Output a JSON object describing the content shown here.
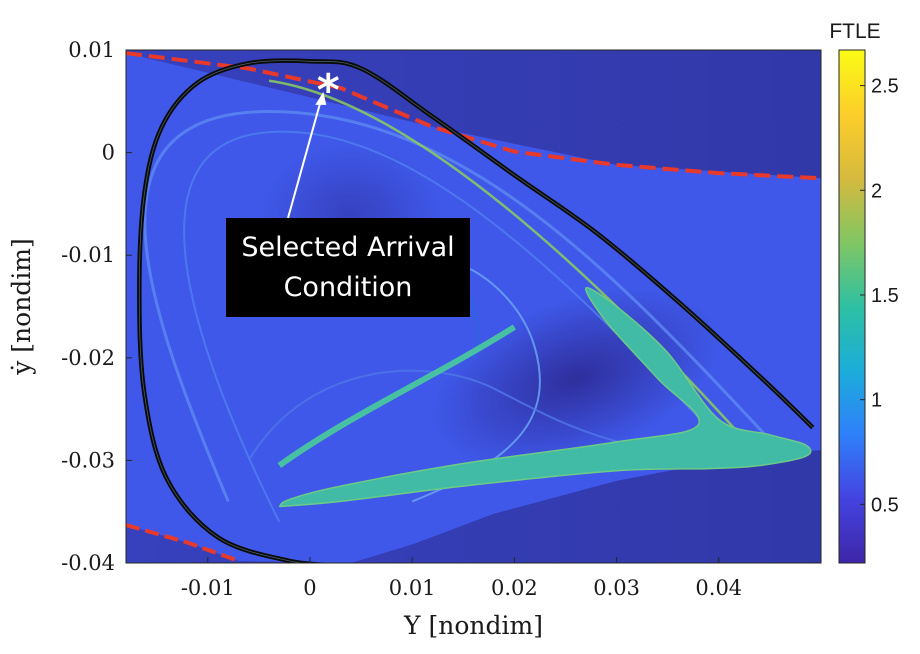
{
  "chart_data": {
    "type": "heatmap",
    "xlabel": "Y [nondim]",
    "ylabel": "ẏ [nondim]",
    "xlim": [
      -0.018,
      0.05
    ],
    "ylim": [
      -0.04,
      0.01
    ],
    "xticks": [
      {
        "value": -0.01,
        "label": "-0.01"
      },
      {
        "value": 0,
        "label": "0"
      },
      {
        "value": 0.01,
        "label": "0.01"
      },
      {
        "value": 0.02,
        "label": "0.02"
      },
      {
        "value": 0.03,
        "label": "0.03"
      },
      {
        "value": 0.04,
        "label": "0.04"
      }
    ],
    "yticks": [
      {
        "value": 0.01,
        "label": "0.01"
      },
      {
        "value": 0,
        "label": "0"
      },
      {
        "value": -0.01,
        "label": "-0.01"
      },
      {
        "value": -0.02,
        "label": "-0.02"
      },
      {
        "value": -0.03,
        "label": "-0.03"
      },
      {
        "value": -0.04,
        "label": "-0.04"
      }
    ],
    "grid": false,
    "colorbar": {
      "title": "FTLE",
      "range": [
        0.22,
        2.67
      ],
      "ticks": [
        {
          "value": 0.5,
          "label": "0.5"
        },
        {
          "value": 1,
          "label": "1"
        },
        {
          "value": 1.5,
          "label": "1.5"
        },
        {
          "value": 2,
          "label": "2"
        },
        {
          "value": 2.5,
          "label": "2.5"
        }
      ],
      "colormap": [
        "#3e26a8",
        "#4443e0",
        "#2f80fa",
        "#1cadda",
        "#2ec0a3",
        "#81c663",
        "#d6ba3e",
        "#fdce2a",
        "#f9fb15"
      ]
    },
    "boundary_red_dashed": {
      "color": "#e8392a",
      "upper": [
        [
          -0.018,
          0.0097
        ],
        [
          -0.006,
          0.0082
        ],
        [
          0.003,
          0.0063
        ],
        [
          0.012,
          0.0025
        ],
        [
          0.02,
          0.0001
        ],
        [
          0.03,
          -0.0012
        ],
        [
          0.04,
          -0.002
        ],
        [
          0.05,
          -0.0025
        ]
      ],
      "lower": [
        [
          -0.018,
          -0.0363
        ],
        [
          -0.012,
          -0.038
        ],
        [
          -0.007,
          -0.0398
        ]
      ]
    },
    "black_curve": [
      [
        0.0492,
        -0.0268
      ],
      [
        0.044,
        -0.0218
      ],
      [
        0.036,
        -0.0145
      ],
      [
        0.028,
        -0.0078
      ],
      [
        0.02,
        -0.0022
      ],
      [
        0.012,
        0.0035
      ],
      [
        0.005,
        0.0082
      ],
      [
        0.0,
        0.0089
      ],
      [
        -0.006,
        0.0087
      ],
      [
        -0.011,
        0.0068
      ],
      [
        -0.0145,
        0.0025
      ],
      [
        -0.0162,
        -0.004
      ],
      [
        -0.0167,
        -0.0135
      ],
      [
        -0.0162,
        -0.0235
      ],
      [
        -0.014,
        -0.0318
      ],
      [
        -0.009,
        -0.0375
      ],
      [
        -0.002,
        -0.0398
      ],
      [
        0.003,
        -0.0402
      ]
    ],
    "flow_region": [
      [
        -0.018,
        0.0097
      ],
      [
        0.012,
        0.0025
      ],
      [
        0.03,
        -0.0012
      ],
      [
        0.05,
        -0.0025
      ],
      [
        0.05,
        -0.029
      ],
      [
        0.043,
        -0.0295
      ],
      [
        0.03,
        -0.032
      ],
      [
        0.018,
        -0.0352
      ],
      [
        0.01,
        -0.0382
      ],
      [
        0.004,
        -0.04
      ],
      [
        -0.007,
        -0.0398
      ],
      [
        -0.012,
        -0.038
      ],
      [
        -0.018,
        -0.0363
      ]
    ],
    "teal_band": [
      [
        -0.003,
        -0.0345
      ],
      [
        0.003,
        -0.034
      ],
      [
        0.015,
        -0.0325
      ],
      [
        0.03,
        -0.031
      ],
      [
        0.039,
        -0.0308
      ],
      [
        0.044,
        -0.0305
      ],
      [
        0.0485,
        -0.0296
      ],
      [
        0.0485,
        -0.0285
      ],
      [
        0.045,
        -0.0275
      ],
      [
        0.04,
        -0.026
      ],
      [
        0.035,
        -0.0195
      ],
      [
        0.03,
        -0.015
      ],
      [
        0.027,
        -0.0132
      ],
      [
        0.029,
        -0.0165
      ],
      [
        0.034,
        -0.022
      ],
      [
        0.038,
        -0.0265
      ],
      [
        0.03,
        -0.0282
      ],
      [
        0.015,
        -0.0303
      ],
      [
        0.003,
        -0.0325
      ],
      [
        -0.002,
        -0.0338
      ]
    ],
    "annotation": {
      "text_lines": [
        "Selected Arrival",
        "Condition"
      ],
      "target": [
        0.0015,
        0.0068
      ],
      "marker": "*"
    }
  }
}
